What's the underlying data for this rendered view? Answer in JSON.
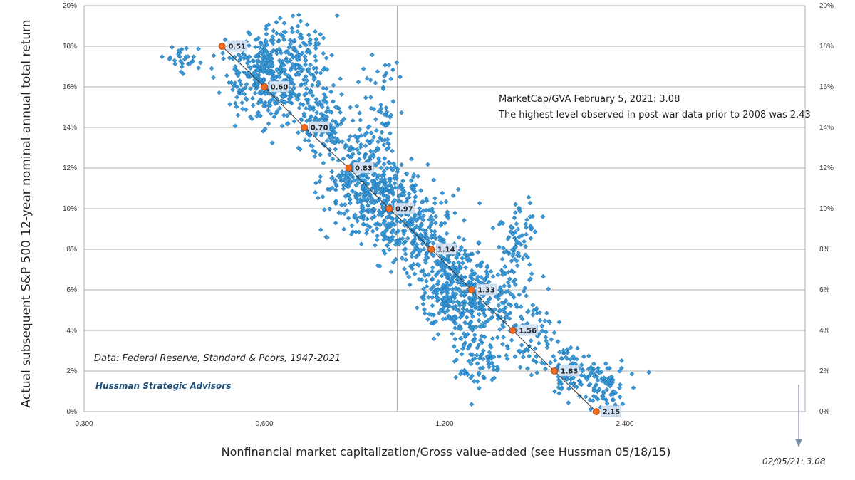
{
  "chart_data": {
    "type": "scatter",
    "xlabel": "Nonfinancial market capitalization/Gross value-added (see Hussman 05/18/15)",
    "ylabel": "Actual subsequent S&P 500 12-year nominal annual total return",
    "x_scale": "log",
    "x_ticks": [
      "0.300",
      "0.600",
      "1.200",
      "2.400"
    ],
    "x_tick_values": [
      0.3,
      0.6,
      1.2,
      2.4
    ],
    "xlim": [
      0.3,
      4.8
    ],
    "ylim": [
      0,
      20
    ],
    "y_ticks": [
      "0%",
      "2%",
      "4%",
      "6%",
      "8%",
      "10%",
      "12%",
      "14%",
      "16%",
      "18%",
      "20%"
    ],
    "y_tick_values": [
      0,
      2,
      4,
      6,
      8,
      10,
      12,
      14,
      16,
      18,
      20
    ],
    "grid": true,
    "fit_line": {
      "points": [
        {
          "x": 0.51,
          "y": 18,
          "label": "0.51"
        },
        {
          "x": 0.6,
          "y": 16,
          "label": "0.60"
        },
        {
          "x": 0.7,
          "y": 14,
          "label": "0.70"
        },
        {
          "x": 0.83,
          "y": 12,
          "label": "0.83"
        },
        {
          "x": 0.97,
          "y": 10,
          "label": "0.97"
        },
        {
          "x": 1.14,
          "y": 8,
          "label": "1.14"
        },
        {
          "x": 1.33,
          "y": 6,
          "label": "1.33"
        },
        {
          "x": 1.56,
          "y": 4,
          "label": "1.56"
        },
        {
          "x": 1.83,
          "y": 2,
          "label": "1.83"
        },
        {
          "x": 2.15,
          "y": 0,
          "label": "2.15"
        }
      ]
    },
    "scatter_clusters": [
      {
        "x": 0.6,
        "y": 16.5,
        "sx": 0.08,
        "sy": 1.0,
        "n": 320
      },
      {
        "x": 0.68,
        "y": 17.2,
        "sx": 0.07,
        "sy": 1.2,
        "n": 160
      },
      {
        "x": 0.74,
        "y": 14.2,
        "sx": 0.06,
        "sy": 1.0,
        "n": 130
      },
      {
        "x": 0.44,
        "y": 17.3,
        "sx": 0.04,
        "sy": 0.4,
        "n": 30
      },
      {
        "x": 0.86,
        "y": 11.2,
        "sx": 0.07,
        "sy": 1.1,
        "n": 200
      },
      {
        "x": 0.96,
        "y": 10.2,
        "sx": 0.07,
        "sy": 1.0,
        "n": 190
      },
      {
        "x": 1.08,
        "y": 8.9,
        "sx": 0.07,
        "sy": 1.0,
        "n": 180
      },
      {
        "x": 1.2,
        "y": 6.4,
        "sx": 0.06,
        "sy": 1.2,
        "n": 220
      },
      {
        "x": 1.32,
        "y": 5.3,
        "sx": 0.05,
        "sy": 1.3,
        "n": 180
      },
      {
        "x": 1.6,
        "y": 8.6,
        "sx": 0.04,
        "sy": 1.0,
        "n": 70
      },
      {
        "x": 1.5,
        "y": 5.6,
        "sx": 0.07,
        "sy": 1.2,
        "n": 100
      },
      {
        "x": 1.4,
        "y": 2.4,
        "sx": 0.05,
        "sy": 0.6,
        "n": 60
      },
      {
        "x": 1.68,
        "y": 3.4,
        "sx": 0.05,
        "sy": 0.8,
        "n": 60
      },
      {
        "x": 1.92,
        "y": 2.1,
        "sx": 0.05,
        "sy": 0.6,
        "n": 90
      },
      {
        "x": 2.22,
        "y": 1.3,
        "sx": 0.05,
        "sy": 0.5,
        "n": 90
      },
      {
        "x": 0.88,
        "y": 12.8,
        "sx": 0.06,
        "sy": 0.8,
        "n": 60
      },
      {
        "x": 0.95,
        "y": 14.5,
        "sx": 0.05,
        "sy": 1.6,
        "n": 60
      }
    ]
  },
  "annotations": {
    "marketcap_line1": "MarketCap/GVA February 5, 2021: 3.08",
    "marketcap_line2": "The highest level observed in post-war data prior to 2008 was 2.43",
    "source": "Data: Federal Reserve, Standard & Poors, 1947-2021",
    "brand": "Hussman Strategic Advisors",
    "current_marker": "02/05/21: 3.08"
  },
  "colors": {
    "point": "#3a9bd9",
    "point_edge": "#1f6fae",
    "dot": "#f26a1b",
    "label_bg": "#cfe0f3",
    "grid": "#999999"
  }
}
